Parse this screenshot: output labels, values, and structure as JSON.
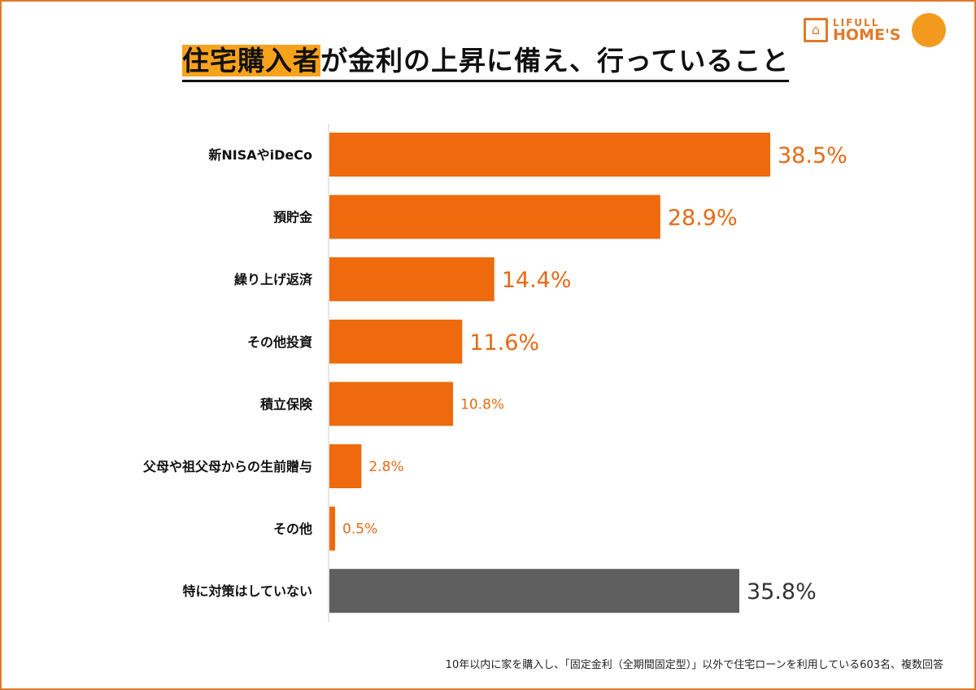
{
  "header": {
    "title_highlight": "住宅購入者",
    "title_rest": "が金利の上昇に備え、行っていること"
  },
  "logo": {
    "line1": "LIFULL",
    "line2": "HOME'S"
  },
  "footnote": "10年以内に家を購入し、「固定金利（全期間固定型）」以外で住宅ローンを利用している603名、複数回答",
  "colors": {
    "accent": "#ee6a0c",
    "neutral": "#5f5f5f",
    "frame": "#e07a2a"
  },
  "chart_data": {
    "type": "bar",
    "orientation": "horizontal",
    "title": "住宅購入者が金利の上昇に備え、行っていること",
    "categories": [
      "新NISAやiDeCo",
      "預貯金",
      "繰り上げ返済",
      "その他投資",
      "積立保険",
      "父母や祖父母からの生前贈与",
      "その他",
      "特に対策はしていない"
    ],
    "values": [
      38.5,
      28.9,
      14.4,
      11.6,
      10.8,
      2.8,
      0.5,
      35.8
    ],
    "labels": [
      "38.5%",
      "28.9%",
      "14.4%",
      "11.6%",
      "10.8%",
      "2.8%",
      "0.5%",
      "35.8%"
    ],
    "unit": "%",
    "bar_colors": [
      "#ee6a0c",
      "#ee6a0c",
      "#ee6a0c",
      "#ee6a0c",
      "#ee6a0c",
      "#ee6a0c",
      "#ee6a0c",
      "#5f5f5f"
    ],
    "grid": false
  }
}
